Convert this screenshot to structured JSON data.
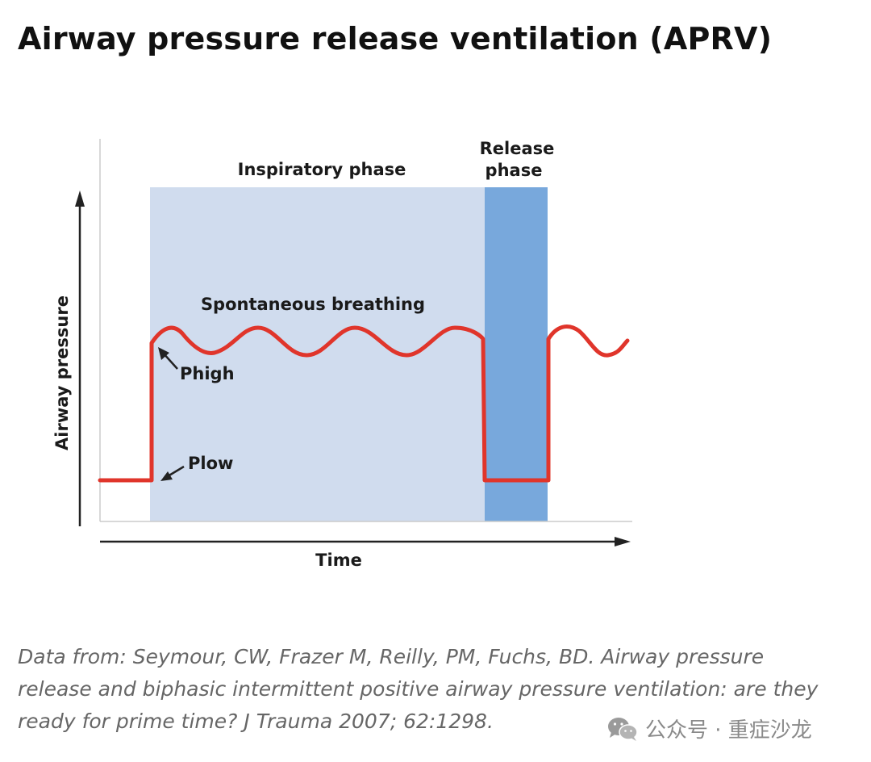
{
  "header": {
    "title": "Airway pressure release ventilation (APRV)"
  },
  "diagram": {
    "inspiratory_phase_label": "Inspiratory phase",
    "release_phase_label_line1": "Release",
    "release_phase_label_line2": "phase",
    "spontaneous_label": "Spontaneous breathing",
    "phigh_label": "Phigh",
    "plow_label": "Plow",
    "y_axis_label": "Airway pressure",
    "x_axis_label": "Time",
    "colors": {
      "inspiratory_fill": "#d0dcee",
      "release_fill": "#78a8dc",
      "pressure_line": "#e0352b",
      "axis": "#222222"
    }
  },
  "caption": {
    "line1": "Data from: Seymour, CW, Frazer M, Reilly, PM, Fuchs, BD. Airway pressure",
    "line2": "release and biphasic intermittent positive airway pressure ventilation: are they",
    "line3": "ready for prime time? J Trauma 2007; 62:1298."
  },
  "watermark": {
    "icon": "wechat-icon",
    "text": "公众号 · 重症沙龙"
  }
}
